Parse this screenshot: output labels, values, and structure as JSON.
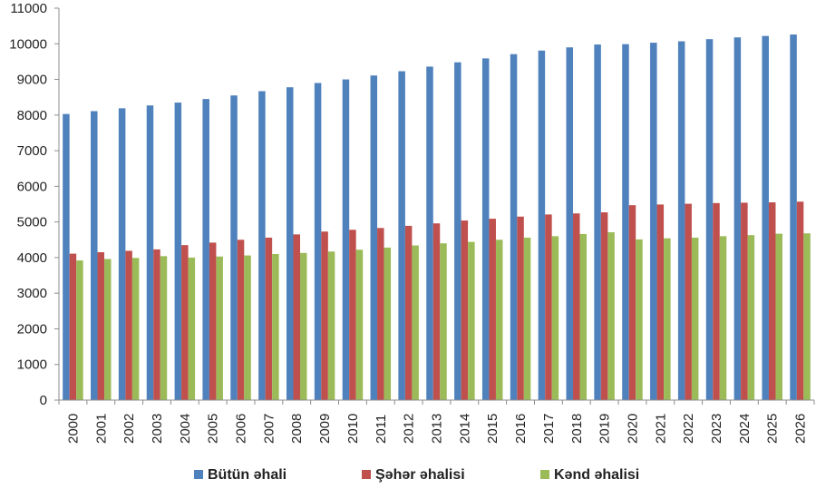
{
  "chart_data": {
    "type": "bar",
    "title": "",
    "xlabel": "",
    "ylabel": "",
    "ylim": [
      0,
      11000
    ],
    "yticks": [
      0,
      1000,
      2000,
      3000,
      4000,
      5000,
      6000,
      7000,
      8000,
      9000,
      10000,
      11000
    ],
    "grid": false,
    "legend_position": "bottom",
    "categories": [
      "2000",
      "2001",
      "2002",
      "2003",
      "2004",
      "2005",
      "2006",
      "2007",
      "2008",
      "2009",
      "2010",
      "2011",
      "2012",
      "2013",
      "2014",
      "2015",
      "2016",
      "2017",
      "2018",
      "2019",
      "2020",
      "2021",
      "2022",
      "2023",
      "2024",
      "2025",
      "2026"
    ],
    "series": [
      {
        "name": "Bütün əhali",
        "color": "#4F81BD",
        "values": [
          8030,
          8110,
          8190,
          8270,
          8350,
          8450,
          8550,
          8670,
          8780,
          8900,
          9000,
          9110,
          9230,
          9360,
          9480,
          9590,
          9710,
          9810,
          9900,
          9980,
          9990,
          10030,
          10070,
          10130,
          10180,
          10220,
          10260
        ]
      },
      {
        "name": "Şəhər əhalisi",
        "color": "#C0504D",
        "values": [
          4110,
          4150,
          4190,
          4230,
          4350,
          4420,
          4500,
          4560,
          4650,
          4730,
          4780,
          4830,
          4890,
          4960,
          5040,
          5090,
          5150,
          5210,
          5240,
          5270,
          5470,
          5490,
          5510,
          5530,
          5540,
          5550,
          5570
        ]
      },
      {
        "name": "Kənd əhalisi",
        "color": "#9BBB59",
        "values": [
          3920,
          3960,
          3990,
          4040,
          4000,
          4030,
          4060,
          4100,
          4130,
          4170,
          4220,
          4280,
          4340,
          4400,
          4440,
          4500,
          4560,
          4600,
          4660,
          4710,
          4510,
          4540,
          4560,
          4600,
          4630,
          4670,
          4680
        ]
      }
    ]
  }
}
